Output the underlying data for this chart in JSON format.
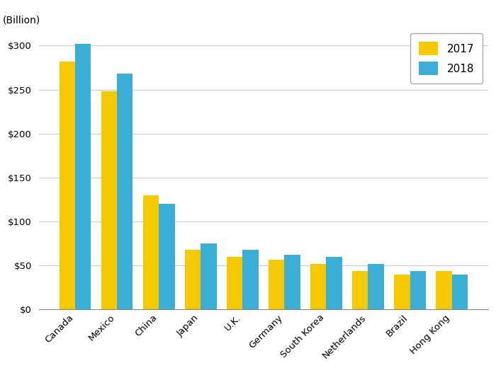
{
  "categories": [
    "Canada",
    "Mexico",
    "China",
    "Japan",
    "U.K.",
    "Germany",
    "South Korea",
    "Netherlands",
    "Brazil",
    "Hong Kong"
  ],
  "values_2017": [
    282,
    248,
    130,
    68,
    60,
    57,
    52,
    44,
    40,
    44
  ],
  "values_2018": [
    302,
    268,
    120,
    75,
    68,
    62,
    60,
    52,
    44,
    40
  ],
  "color_2017": "#F5C800",
  "color_2018": "#3BAED8",
  "ylabel_text": "(Billion)",
  "ylim": [
    0,
    320
  ],
  "yticks": [
    0,
    50,
    100,
    150,
    200,
    250,
    300
  ],
  "legend_labels": [
    "2017",
    "2018"
  ],
  "bar_width": 0.38,
  "grid_color": "#cccccc",
  "background_color": "#ffffff",
  "axis_fontsize": 10,
  "tick_fontsize": 9.5,
  "legend_fontsize": 11
}
